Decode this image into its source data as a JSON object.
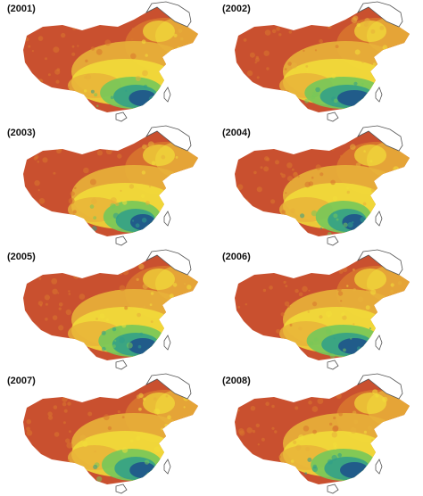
{
  "panels": [
    {
      "year_label": "(2001)",
      "south_intensity": 0.78
    },
    {
      "year_label": "(2002)",
      "south_intensity": 0.95
    },
    {
      "year_label": "(2003)",
      "south_intensity": 0.7
    },
    {
      "year_label": "(2004)",
      "south_intensity": 0.68
    },
    {
      "year_label": "(2005)",
      "south_intensity": 0.82
    },
    {
      "year_label": "(2006)",
      "south_intensity": 0.9
    },
    {
      "year_label": "(2007)",
      "south_intensity": 0.74
    },
    {
      "year_label": "(2008)",
      "south_intensity": 0.8
    }
  ],
  "colors": {
    "arid": "#c9502f",
    "dry": "#d9772e",
    "mid": "#e8b13a",
    "yellow": "#f2de3a",
    "green": "#76c85a",
    "teal": "#2f9f8a",
    "deep": "#1d4f8c",
    "outline": "#555555"
  }
}
